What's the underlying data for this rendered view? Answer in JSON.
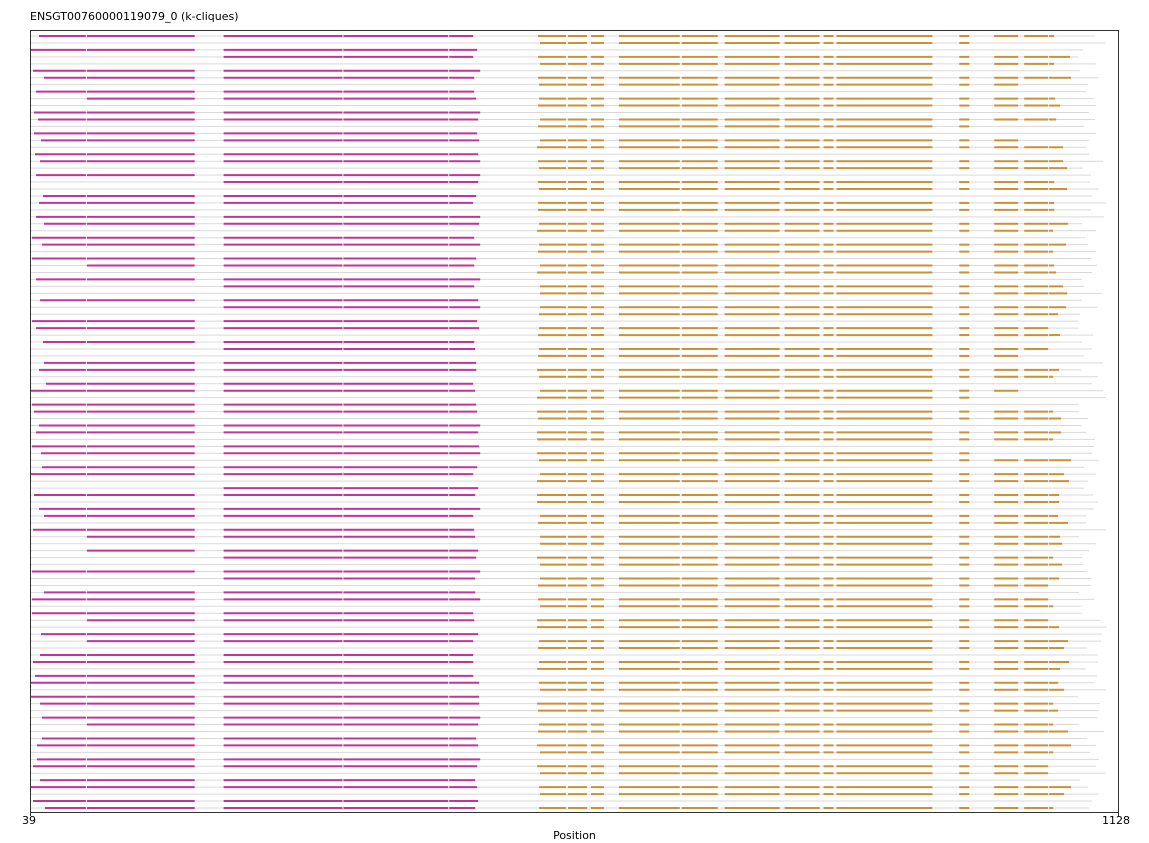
{
  "chart_data": {
    "type": "alignment",
    "title": "ENSGT00760000119079_0 (k-cliques)",
    "xlabel": "Position",
    "xlim": [
      39,
      1128
    ],
    "x_ticks": [
      "39",
      "1128"
    ],
    "row_count": 112,
    "colors": {
      "group_1": "#c0359a",
      "group_2": "#c99138",
      "gap": "#d9d9d9",
      "frame": "#333333"
    },
    "group_1_segments": [
      [
        39,
        95
      ],
      [
        95,
        204
      ],
      [
        232,
        352
      ],
      [
        352,
        458
      ],
      [
        458,
        490
      ]
    ],
    "group_2_segments": [
      [
        549,
        576
      ],
      [
        577,
        597
      ],
      [
        600,
        614
      ],
      [
        628,
        690
      ],
      [
        691,
        728
      ],
      [
        734,
        790
      ],
      [
        794,
        830
      ],
      [
        833,
        844
      ],
      [
        846,
        943
      ],
      [
        969,
        980
      ],
      [
        1004,
        1029
      ],
      [
        1034,
        1059
      ],
      [
        1059,
        1082
      ]
    ]
  }
}
